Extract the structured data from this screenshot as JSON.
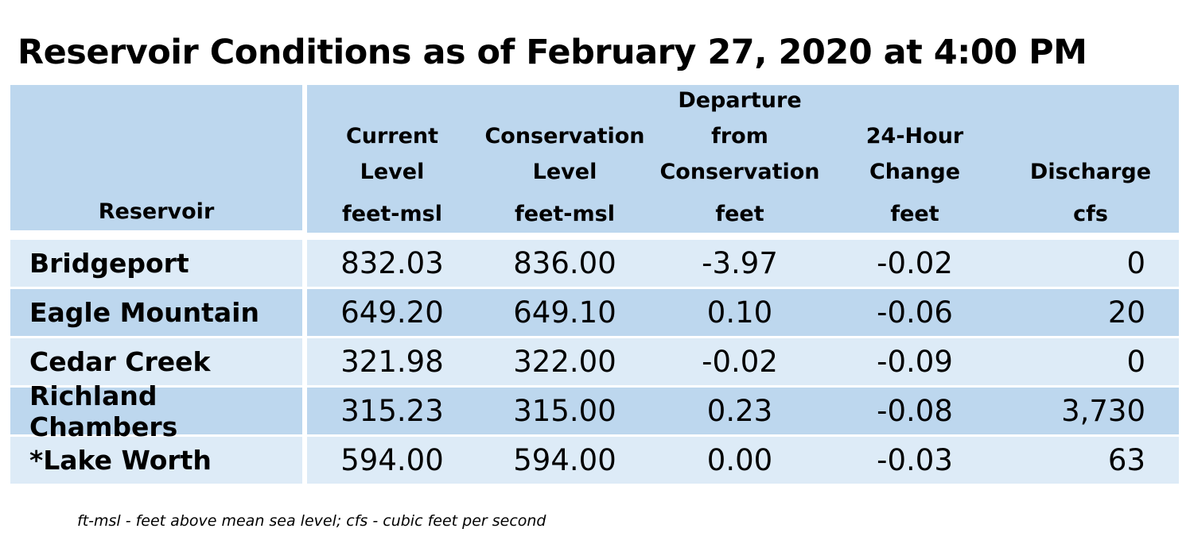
{
  "title": "Reservoir Conditions as of February 27, 2020 at 4:00 PM",
  "table": {
    "headers": [
      {
        "line1": "",
        "line2": "",
        "line3": "",
        "unit": "Reservoir"
      },
      {
        "line1": "",
        "line2": "Current",
        "line3": "Level",
        "unit": "feet-msl"
      },
      {
        "line1": "",
        "line2": "Conservation",
        "line3": "Level",
        "unit": "feet-msl"
      },
      {
        "line1": "Departure",
        "line2": "from",
        "line3": "Conservation",
        "unit": "feet"
      },
      {
        "line1": "",
        "line2": "24-Hour",
        "line3": "Change",
        "unit": "feet"
      },
      {
        "line1": "",
        "line2": "",
        "line3": "Discharge",
        "unit": "cfs"
      }
    ],
    "rows": [
      {
        "reservoir": "Bridgeport",
        "current": "832.03",
        "conservation": "836.00",
        "departure": "-3.97",
        "change": "-0.02",
        "discharge": "0"
      },
      {
        "reservoir": "Eagle Mountain",
        "current": "649.20",
        "conservation": "649.10",
        "departure": "0.10",
        "change": "-0.06",
        "discharge": "20"
      },
      {
        "reservoir": "Cedar Creek",
        "current": "321.98",
        "conservation": "322.00",
        "departure": "-0.02",
        "change": "-0.09",
        "discharge": "0"
      },
      {
        "reservoir": "Richland Chambers",
        "current": "315.23",
        "conservation": "315.00",
        "departure": "0.23",
        "change": "-0.08",
        "discharge": "3,730"
      },
      {
        "reservoir": "*Lake Worth",
        "current": "594.00",
        "conservation": "594.00",
        "departure": "0.00",
        "change": "-0.03",
        "discharge": "63"
      }
    ]
  },
  "footnote": "ft-msl - feet above mean sea level; cfs - cubic feet per second",
  "colors": {
    "header_bg": "#bdd7ee",
    "row_light": "#ddebf7",
    "row_dark": "#bdd7ee"
  }
}
